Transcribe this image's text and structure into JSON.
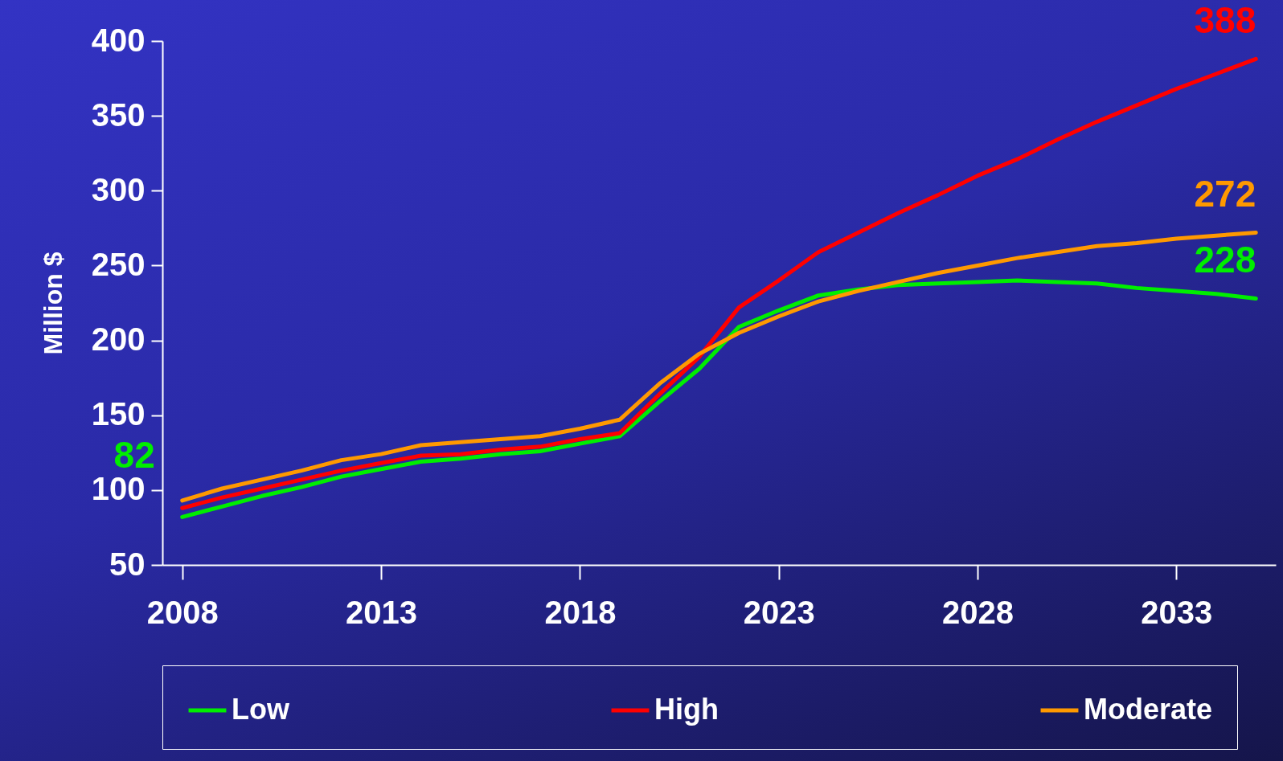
{
  "chart_data": {
    "type": "line",
    "ylabel": "Million $",
    "x": [
      2008,
      2009,
      2010,
      2011,
      2012,
      2013,
      2014,
      2015,
      2016,
      2017,
      2018,
      2019,
      2020,
      2021,
      2022,
      2023,
      2024,
      2025,
      2026,
      2027,
      2028,
      2029,
      2030,
      2031,
      2032,
      2033,
      2034,
      2035
    ],
    "series": [
      {
        "name": "Low",
        "color": "#00ee00",
        "values": [
          82,
          89,
          96,
          102,
          109,
          114,
          119,
          121,
          124,
          126,
          131,
          136,
          159,
          181,
          209,
          220,
          230,
          234,
          237,
          238,
          239,
          240,
          239,
          238,
          235,
          233,
          231,
          228
        ],
        "value_labels": [
          "82",
          null,
          null,
          null,
          null,
          null,
          null,
          null,
          null,
          null,
          null,
          null,
          null,
          null,
          null,
          null,
          null,
          null,
          null,
          null,
          null,
          null,
          null,
          null,
          null,
          null,
          null,
          "228"
        ]
      },
      {
        "name": "High",
        "color": "#ff0000",
        "values": [
          88,
          95,
          101,
          107,
          113,
          118,
          123,
          124,
          127,
          129,
          134,
          138,
          164,
          189,
          222,
          240,
          259,
          272,
          285,
          297,
          310,
          321,
          334,
          346,
          357,
          368,
          378,
          388
        ],
        "value_labels": [
          null,
          null,
          null,
          null,
          null,
          null,
          null,
          null,
          null,
          null,
          null,
          null,
          null,
          null,
          null,
          null,
          null,
          null,
          null,
          null,
          null,
          null,
          null,
          null,
          null,
          null,
          null,
          "388"
        ]
      },
      {
        "name": "Moderate",
        "color": "#ff9900",
        "values": [
          93,
          101,
          107,
          113,
          120,
          124,
          130,
          132,
          134,
          136,
          141,
          147,
          171,
          191,
          205,
          216,
          226,
          233,
          239,
          245,
          250,
          255,
          259,
          263,
          265,
          268,
          270,
          272
        ],
        "value_labels": [
          null,
          null,
          null,
          null,
          null,
          null,
          null,
          null,
          null,
          null,
          null,
          null,
          null,
          null,
          null,
          null,
          null,
          null,
          null,
          null,
          null,
          null,
          null,
          null,
          null,
          null,
          null,
          "272"
        ]
      }
    ],
    "xlim": [
      2007.5,
      2035.5
    ],
    "xticks": [
      2008,
      2013,
      2018,
      2023,
      2028,
      2033
    ],
    "ylim": [
      50,
      400
    ],
    "yticks": [
      50,
      100,
      150,
      200,
      250,
      300,
      350,
      400
    ],
    "grid": false,
    "legend": "bottom",
    "line_style": "solid"
  }
}
